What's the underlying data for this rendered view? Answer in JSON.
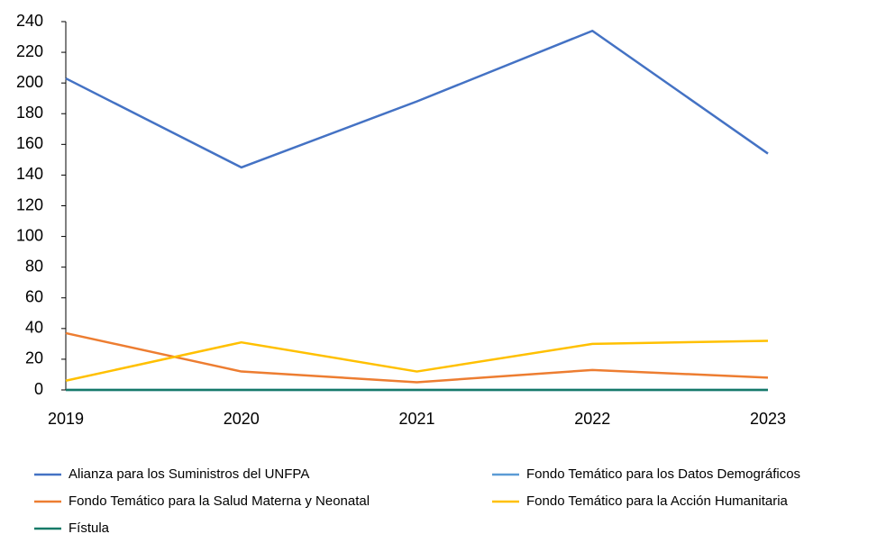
{
  "chart_data": {
    "type": "line",
    "categories": [
      "2019",
      "2020",
      "2021",
      "2022",
      "2023"
    ],
    "series": [
      {
        "name": "Alianza para los Suministros del UNFPA",
        "color": "#4472c4",
        "values": [
          203,
          145,
          188,
          234,
          154
        ]
      },
      {
        "name": "Fondo Temático para los Datos Demográficos",
        "color": "#5b9bd5",
        "values": [
          0,
          0,
          0,
          0,
          0
        ]
      },
      {
        "name": "Fondo Temático para la Salud Materna y Neonatal",
        "color": "#ed7d31",
        "values": [
          37,
          12,
          5,
          13,
          8
        ]
      },
      {
        "name": "Fondo Temático para la Acción Humanitaria",
        "color": "#ffc000",
        "values": [
          6,
          31,
          12,
          30,
          32
        ]
      },
      {
        "name": "Fístula",
        "color": "#167a68",
        "values": [
          0,
          0,
          0,
          0,
          0
        ]
      }
    ],
    "ylim": [
      0,
      240
    ],
    "yticks": [
      0,
      20,
      40,
      60,
      80,
      100,
      120,
      140,
      160,
      180,
      200,
      220,
      240
    ],
    "grid": false,
    "legend": "bottom"
  }
}
